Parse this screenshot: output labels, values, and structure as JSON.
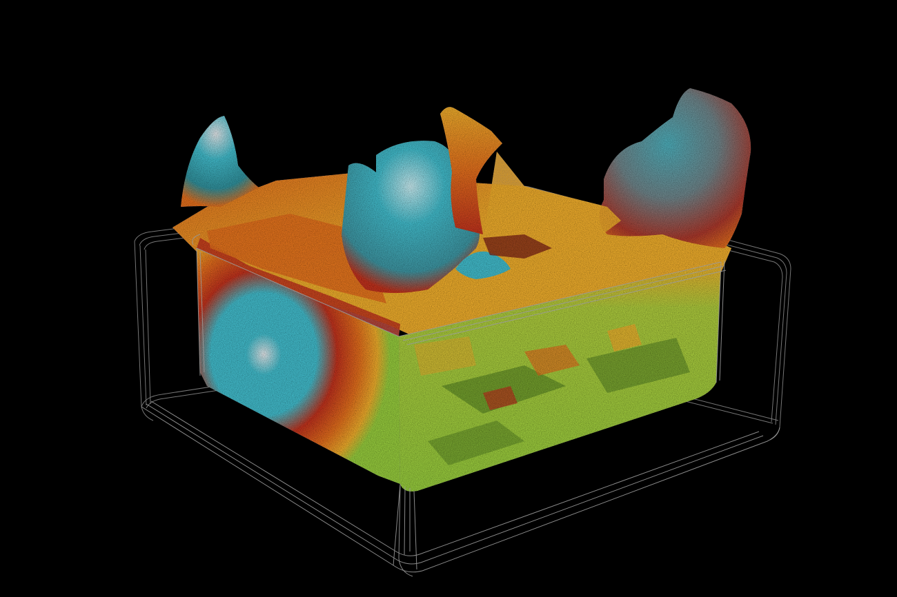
{
  "viewer": {
    "background_color": "#000000",
    "wireframe_color": "#8c8c8c",
    "palette": {
      "green": "#8fc23a",
      "dark_green": "#4f7a22",
      "yellow": "#e3a52a",
      "orange": "#d86a1c",
      "red": "#b7301c",
      "cyan": "#3fb3c2",
      "white": "#d9dde0",
      "gray": "#8a8f94"
    },
    "icons": {
      "container": "wireframe-box-icon",
      "cloud": "point-cloud-icon"
    }
  }
}
